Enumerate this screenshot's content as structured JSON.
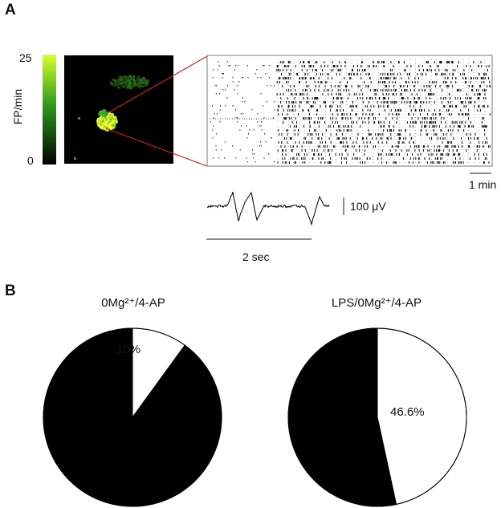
{
  "panel_a": {
    "letter": "A",
    "colorbar": {
      "max_label": "25",
      "min_label": "0",
      "axis_label": "FP/min",
      "gradient_top": "#d8ff2a",
      "gradient_mid": "#2e9e1c",
      "gradient_bottom": "#000000"
    },
    "raster_scalebar_label": "1 min",
    "trace_scalebar_label": "100 μV",
    "trace_time_scalebar_label": "2 sec",
    "zoom_line_color": "#d22020"
  },
  "panel_b": {
    "letter": "B"
  },
  "chart_data": [
    {
      "type": "pie",
      "title": "0Mg²⁺/4-AP",
      "slices": [
        {
          "value": 10,
          "label": "10%",
          "color": "#ffffff"
        },
        {
          "value": 90,
          "label": "",
          "color": "#000000"
        }
      ]
    },
    {
      "type": "pie",
      "title": "LPS/0Mg²⁺/4-AP",
      "slices": [
        {
          "value": 46.6,
          "label": "46.6%",
          "color": "#ffffff"
        },
        {
          "value": 53.4,
          "label": "",
          "color": "#000000"
        }
      ]
    }
  ]
}
